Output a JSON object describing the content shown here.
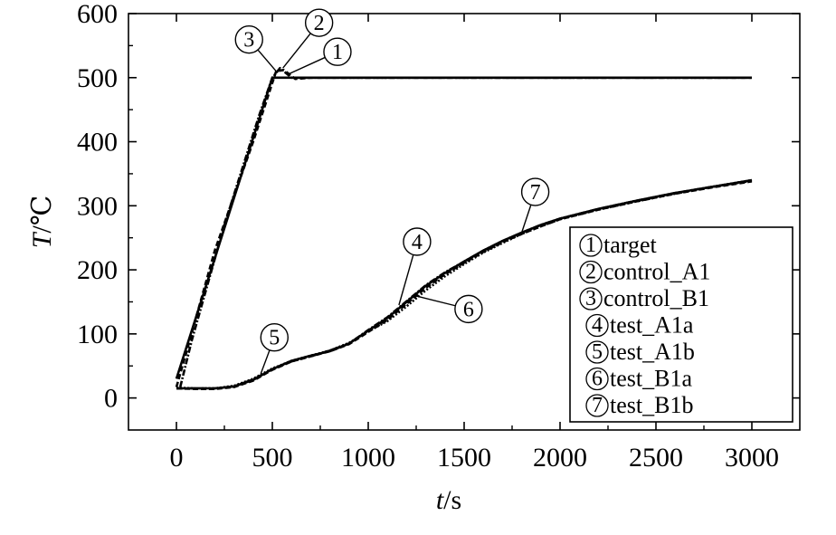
{
  "chart_data": {
    "type": "line",
    "xlabel_var": "t",
    "xlabel_unit": "/s",
    "ylabel_var": "T",
    "ylabel_unit": "/℃",
    "xlim": [
      -250,
      3250
    ],
    "ylim": [
      -50,
      600
    ],
    "xticks": [
      0,
      500,
      1000,
      1500,
      2000,
      2500,
      3000
    ],
    "yticks": [
      0,
      100,
      200,
      300,
      400,
      500,
      600
    ],
    "grid": false,
    "legend_position": "lower-right",
    "series": [
      {
        "name": "target",
        "marker": "1",
        "style": "solid",
        "x": [
          0,
          500,
          3000
        ],
        "y": [
          30,
          500,
          500
        ]
      },
      {
        "name": "control_A1",
        "marker": "2",
        "style": "dashed",
        "x": [
          0,
          60,
          200,
          400,
          520,
          560,
          620,
          700,
          1000,
          2000,
          3000
        ],
        "y": [
          17,
          80,
          230,
          400,
          510,
          512,
          498,
          500,
          500,
          500,
          500
        ]
      },
      {
        "name": "control_B1",
        "marker": "3",
        "style": "dashdot",
        "x": [
          20,
          80,
          250,
          430,
          500,
          540,
          600,
          700,
          1000,
          2000,
          3000
        ],
        "y": [
          17,
          90,
          270,
          440,
          500,
          515,
          500,
          500,
          500,
          500,
          500
        ]
      },
      {
        "name": "test_A1a",
        "marker": "4",
        "style": "solid",
        "x": [
          0,
          100,
          200,
          300,
          400,
          500,
          600,
          700,
          800,
          900,
          1000,
          1100,
          1200,
          1300,
          1400,
          1500,
          1600,
          1700,
          1800,
          1900,
          2000,
          2200,
          2400,
          2600,
          2800,
          3000
        ],
        "y": [
          15,
          15,
          15,
          18,
          28,
          45,
          58,
          66,
          73,
          85,
          105,
          125,
          150,
          175,
          195,
          213,
          230,
          245,
          258,
          270,
          280,
          295,
          308,
          320,
          330,
          340
        ]
      },
      {
        "name": "test_A1b",
        "marker": "5",
        "style": "dashed",
        "x": [
          0,
          100,
          200,
          300,
          400,
          500,
          600,
          700,
          800,
          900,
          1000,
          1100,
          1200,
          1300,
          1400,
          1500,
          1600,
          1700,
          1800,
          1900,
          2000,
          2200,
          2400,
          2600,
          2800,
          3000
        ],
        "y": [
          15,
          14,
          14,
          17,
          27,
          44,
          57,
          65,
          73,
          84,
          103,
          122,
          147,
          172,
          193,
          211,
          228,
          243,
          256,
          268,
          279,
          294,
          307,
          319,
          329,
          338
        ]
      },
      {
        "name": "test_B1a",
        "marker": "6",
        "style": "dotted",
        "x": [
          0,
          100,
          200,
          300,
          400,
          500,
          600,
          700,
          800,
          900,
          1000,
          1100,
          1200,
          1300,
          1400,
          1500,
          1600,
          1700,
          1800,
          1900,
          2000,
          2200,
          2400,
          2600,
          2800,
          3000
        ],
        "y": [
          16,
          15,
          15,
          19,
          30,
          46,
          58,
          66,
          74,
          86,
          104,
          120,
          143,
          168,
          190,
          209,
          227,
          242,
          256,
          268,
          279,
          294,
          307,
          319,
          330,
          340
        ]
      },
      {
        "name": "test_B1b",
        "marker": "7",
        "style": "dashdot",
        "x": [
          0,
          100,
          200,
          300,
          400,
          500,
          600,
          700,
          800,
          900,
          1000,
          1100,
          1200,
          1300,
          1400,
          1500,
          1600,
          1700,
          1800,
          1900,
          2000,
          2200,
          2400,
          2600,
          2800,
          3000
        ],
        "y": [
          15,
          15,
          15,
          18,
          29,
          45,
          57,
          65,
          74,
          85,
          106,
          126,
          151,
          176,
          196,
          213,
          230,
          245,
          258,
          270,
          280,
          295,
          308,
          320,
          330,
          339
        ]
      }
    ],
    "legend": [
      {
        "marker": "1",
        "label": "target"
      },
      {
        "marker": "2",
        "label": "control_A1"
      },
      {
        "marker": "3",
        "label": "control_B1"
      },
      {
        "marker": "4",
        "label": "test_A1a"
      },
      {
        "marker": "5",
        "label": "test_A1b"
      },
      {
        "marker": "6",
        "label": "test_B1a"
      },
      {
        "marker": "7",
        "label": "test_B1b"
      }
    ],
    "annotations": [
      {
        "marker": "1",
        "x": 580,
        "y": 505
      },
      {
        "marker": "2",
        "x": 555,
        "y": 515
      },
      {
        "marker": "3",
        "x": 520,
        "y": 510
      },
      {
        "marker": "4",
        "x": 1160,
        "y": 145
      },
      {
        "marker": "5",
        "x": 440,
        "y": 38
      },
      {
        "marker": "6",
        "x": 1240,
        "y": 160
      },
      {
        "marker": "7",
        "x": 1800,
        "y": 258
      }
    ]
  }
}
